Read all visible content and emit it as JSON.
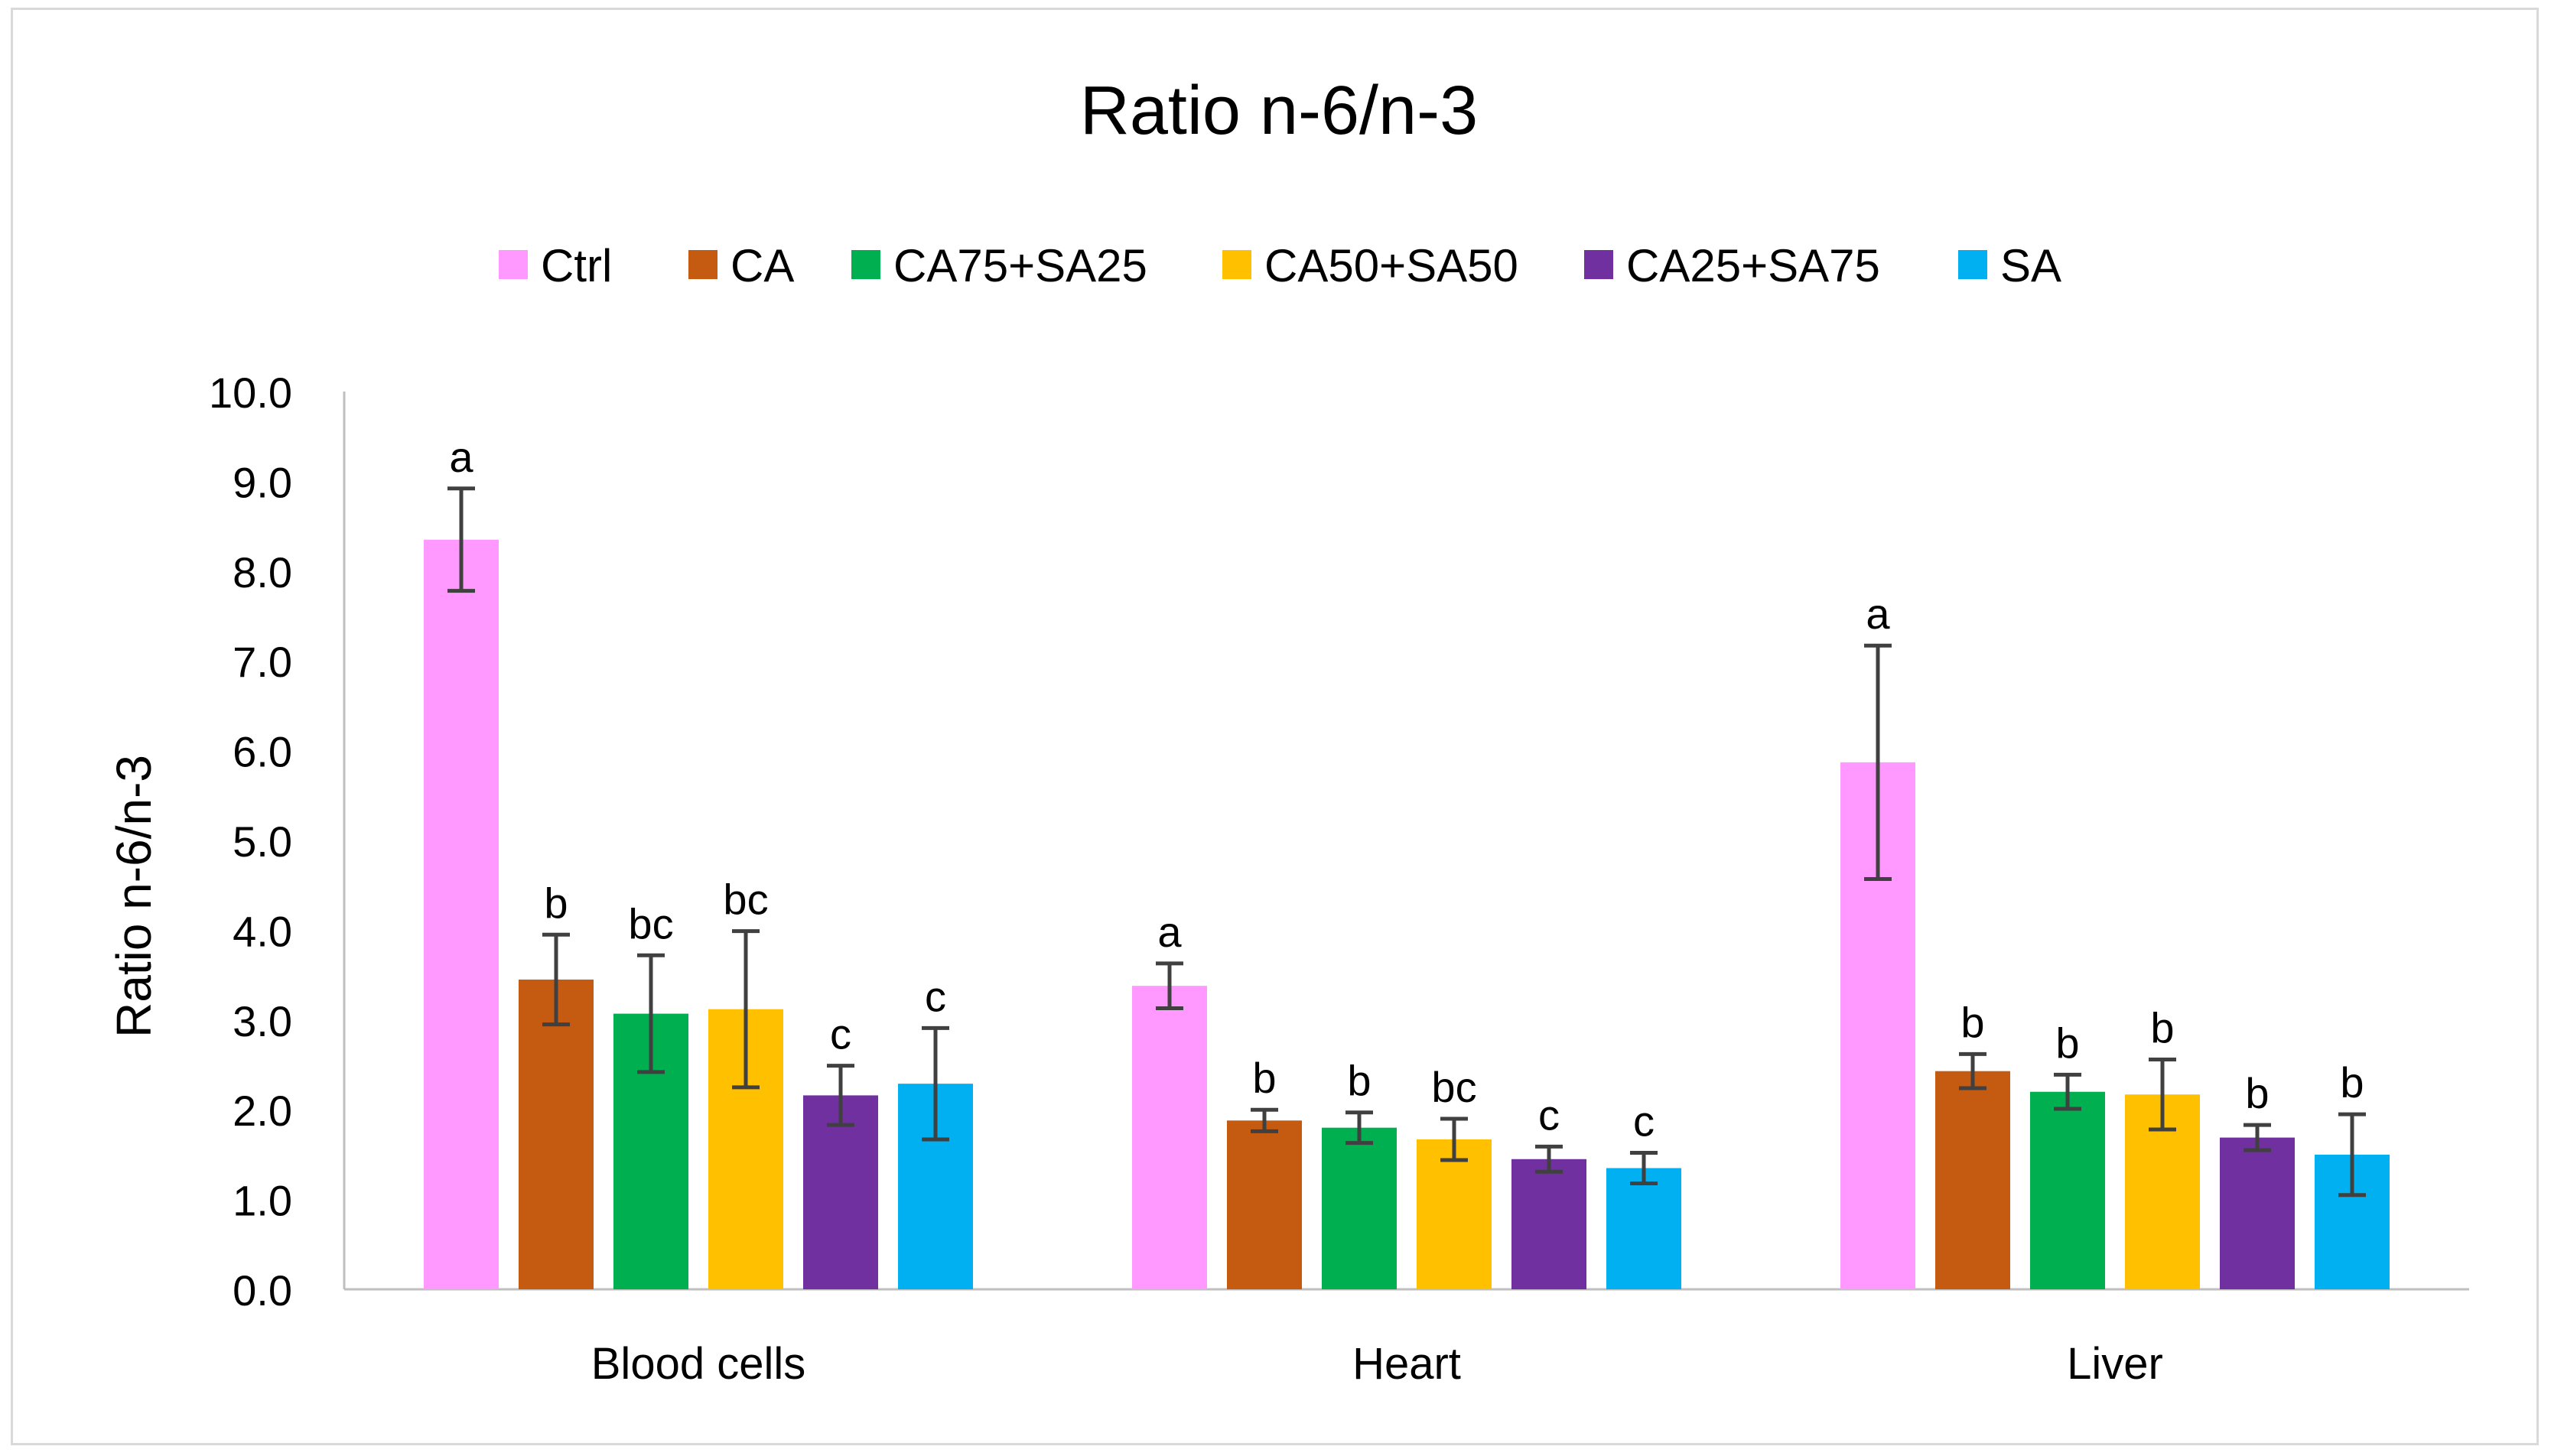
{
  "chart_data": {
    "type": "bar",
    "title": "Ratio n-6/n-3",
    "xlabel": "",
    "ylabel": "Ratio n-6/n-3",
    "ylim": [
      0,
      10
    ],
    "y_ticks": [
      "0.0",
      "1.0",
      "2.0",
      "3.0",
      "4.0",
      "5.0",
      "6.0",
      "7.0",
      "8.0",
      "9.0",
      "10.0"
    ],
    "grid": false,
    "legend_position": "top",
    "categories": [
      "Blood cells",
      "Heart",
      "Liver"
    ],
    "series": [
      {
        "name": "Ctrl",
        "color": "#ff99ff",
        "values": [
          8.35,
          3.38,
          5.87
        ],
        "errors": [
          0.57,
          0.25,
          1.3
        ],
        "letters": [
          "a",
          "a",
          "a"
        ]
      },
      {
        "name": "CA",
        "color": "#c55a11",
        "values": [
          3.45,
          1.88,
          2.43
        ],
        "errors": [
          0.5,
          0.12,
          0.19
        ],
        "letters": [
          "b",
          "b",
          "b"
        ]
      },
      {
        "name": "CA75+SA25",
        "color": "#00b050",
        "values": [
          3.07,
          1.8,
          2.2
        ],
        "errors": [
          0.65,
          0.17,
          0.19
        ],
        "letters": [
          "bc",
          "b",
          "b"
        ]
      },
      {
        "name": "CA50+SA50",
        "color": "#ffc000",
        "values": [
          3.12,
          1.67,
          2.17
        ],
        "errors": [
          0.87,
          0.23,
          0.39
        ],
        "letters": [
          "bc",
          "bc",
          "b"
        ]
      },
      {
        "name": "CA25+SA75",
        "color": "#7030a0",
        "values": [
          2.16,
          1.45,
          1.69
        ],
        "errors": [
          0.33,
          0.14,
          0.14
        ],
        "letters": [
          "c",
          "c",
          "b"
        ]
      },
      {
        "name": "SA",
        "color": "#00b0f0",
        "values": [
          2.29,
          1.35,
          1.5
        ],
        "errors": [
          0.62,
          0.17,
          0.45
        ],
        "letters": [
          "c",
          "c",
          "b"
        ]
      }
    ]
  }
}
